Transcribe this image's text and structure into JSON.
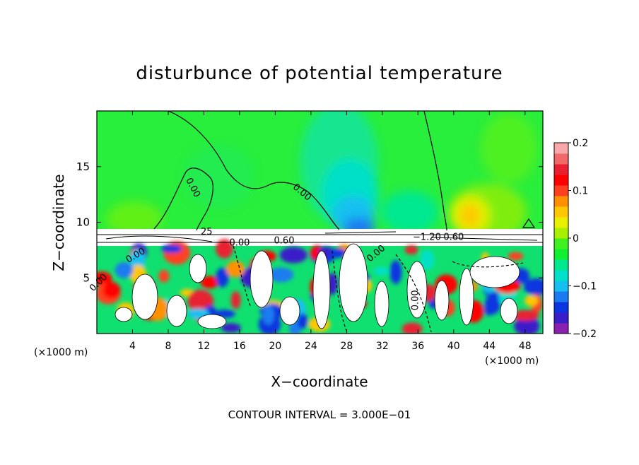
{
  "chart_data": {
    "type": "heatmap",
    "title": "disturbunce of potential temperature",
    "xlabel": "X−coordinate",
    "ylabel": "Z−coordinate",
    "x_unit": "(×1000 m)",
    "x_unit_right": "(×1000 m)",
    "footer": "CONTOUR INTERVAL = 3.000E−01",
    "xlim": [
      0,
      50
    ],
    "ylim": [
      0,
      20
    ],
    "x_ticks": [
      4,
      8,
      12,
      16,
      20,
      24,
      28,
      32,
      36,
      40,
      44,
      48
    ],
    "y_ticks": [
      5,
      10,
      15
    ],
    "colorbar": {
      "range": [
        -0.2,
        0.2
      ],
      "tick_labels": [
        {
          "value": 0.2,
          "label": "0.2"
        },
        {
          "value": 0.1,
          "label": "0.1"
        },
        {
          "value": 0,
          "label": "0"
        },
        {
          "value": -0.1,
          "label": "−0.1"
        },
        {
          "value": -0.2,
          "label": "−0.2"
        }
      ],
      "colors": [
        "#8b1fb0",
        "#3a1fc9",
        "#0a35e0",
        "#1a7bf0",
        "#15c0f0",
        "#00e0c8",
        "#00e890",
        "#10f030",
        "#40f020",
        "#a8f000",
        "#e8f000",
        "#ffc800",
        "#ff9000",
        "#ff4020",
        "#ff0000",
        "#e82030",
        "#f06868",
        "#f8a8a8"
      ]
    },
    "contour_labels": [
      {
        "text": "0.00",
        "x": 10.5,
        "z": 13.0,
        "rot": 62
      },
      {
        "text": "0.00",
        "x": 22.8,
        "z": 12.5,
        "rot": 40
      },
      {
        "text": "0.00",
        "x": 16.0,
        "z": 7.9,
        "rot": 0
      },
      {
        "text": "0.60",
        "x": 21.0,
        "z": 8.1,
        "rot": 0
      },
      {
        "text": "0.00",
        "x": 31.5,
        "z": 7.0,
        "rot": -40
      },
      {
        "text": "−1.20",
        "x": 37.0,
        "z": 8.4,
        "rot": 0
      },
      {
        "text": "0.60",
        "x": 40.0,
        "z": 8.4,
        "rot": 0
      },
      {
        "text": "0.00",
        "x": 4.5,
        "z": 6.8,
        "rot": -30
      },
      {
        "text": "0.00",
        "x": 0.4,
        "z": 4.4,
        "rot": -45
      },
      {
        "text": "0.00",
        "x": 36.0,
        "z": 3.0,
        "rot": -90
      },
      {
        "text": "25",
        "x": 12.3,
        "z": 8.9,
        "rot": 0
      }
    ]
  }
}
